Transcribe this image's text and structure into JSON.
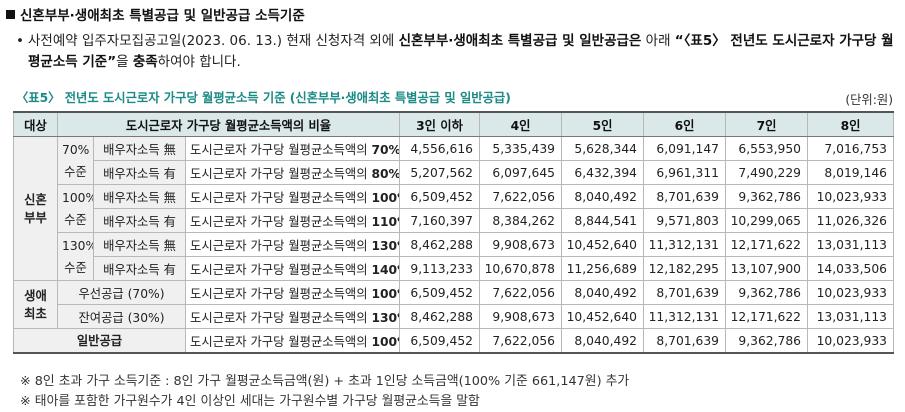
{
  "heading": "신혼부부·생애최초 특별공급 및 일반공급 소득기준",
  "paragraph": {
    "bullet": "•",
    "part1": "사전예약 입주자모집공고일(2023. 06. 13.) 현재 신청자격 외에 ",
    "bold1": "신혼부부·생애최초 특별공급 및 일반공급은",
    "part2": " 아래 ",
    "bold2": "“〈표5〉 전년도 도시근로자 가구당 월평균소득 기준”",
    "part3": "을 ",
    "bold3": "충족",
    "part4": "하여야 합니다."
  },
  "table_caption": "〈표5〉 전년도 도시근로자 가구당 월평균소득 기준 (신혼부부·생애최초 특별공급 및 일반공급)",
  "unit": "(단위:원)",
  "table": {
    "headers": [
      "대상",
      "도시근로자 가구당 월평균소득액의 비율",
      "3인 이하",
      "4인",
      "5인",
      "6인",
      "7인",
      "8인"
    ],
    "group_newlywed": "신혼\n부부",
    "group_firstlife": "생애\n최초",
    "group_general": "일반공급",
    "level_70": "70%\n수준",
    "level_100": "100%\n수준",
    "level_130": "130%\n수준",
    "rows": [
      {
        "sub": "배우자소득 無",
        "ratio_prefix": "도시근로자 가구당 월평균소득액의 ",
        "ratio_pct": "70%",
        "values": [
          "4,556,616",
          "5,335,439",
          "5,628,344",
          "6,091,147",
          "6,553,950",
          "7,016,753"
        ]
      },
      {
        "sub": "배우자소득 有",
        "ratio_prefix": "도시근로자 가구당 월평균소득액의 ",
        "ratio_pct": "80%",
        "values": [
          "5,207,562",
          "6,097,645",
          "6,432,394",
          "6,961,311",
          "7,490,229",
          "8,019,146"
        ]
      },
      {
        "sub": "배우자소득 無",
        "ratio_prefix": "도시근로자 가구당 월평균소득액의 ",
        "ratio_pct": "100%",
        "values": [
          "6,509,452",
          "7,622,056",
          "8,040,492",
          "8,701,639",
          "9,362,786",
          "10,023,933"
        ]
      },
      {
        "sub": "배우자소득 有",
        "ratio_prefix": "도시근로자 가구당 월평균소득액의 ",
        "ratio_pct": "110%",
        "values": [
          "7,160,397",
          "8,384,262",
          "8,844,541",
          "9,571,803",
          "10,299,065",
          "11,026,326"
        ]
      },
      {
        "sub": "배우자소득 無",
        "ratio_prefix": "도시근로자 가구당 월평균소득액의 ",
        "ratio_pct": "130%",
        "values": [
          "8,462,288",
          "9,908,673",
          "10,452,640",
          "11,312,131",
          "12,171,622",
          "13,031,113"
        ]
      },
      {
        "sub": "배우자소득 有",
        "ratio_prefix": "도시근로자 가구당 월평균소득액의 ",
        "ratio_pct": "140%",
        "values": [
          "9,113,233",
          "10,670,878",
          "11,256,689",
          "12,182,295",
          "13,107,900",
          "14,033,506"
        ]
      },
      {
        "sub": "우선공급 (70%)",
        "ratio_prefix": "도시근로자 가구당 월평균소득액의 ",
        "ratio_pct": "100%",
        "values": [
          "6,509,452",
          "7,622,056",
          "8,040,492",
          "8,701,639",
          "9,362,786",
          "10,023,933"
        ]
      },
      {
        "sub": "잔여공급 (30%)",
        "ratio_prefix": "도시근로자 가구당 월평균소득액의 ",
        "ratio_pct": "130%",
        "values": [
          "8,462,288",
          "9,908,673",
          "10,452,640",
          "11,312,131",
          "12,171,622",
          "13,031,113"
        ]
      },
      {
        "sub": "",
        "ratio_prefix": "도시근로자 가구당 월평균소득액의 ",
        "ratio_pct": "100%",
        "values": [
          "6,509,452",
          "7,622,056",
          "8,040,492",
          "8,701,639",
          "9,362,786",
          "10,023,933"
        ]
      }
    ]
  },
  "notes": [
    "※ 8인 초과 가구 소득기준 : 8인 가구 월평균소득금액(원) + 초과 1인당 소득금액(100% 기준 661,147원) 추가",
    "※ 태아를 포함한 가구원수가 4인 이상인 세대는 가구원수별 가구당 월평균소득을 말함"
  ]
}
